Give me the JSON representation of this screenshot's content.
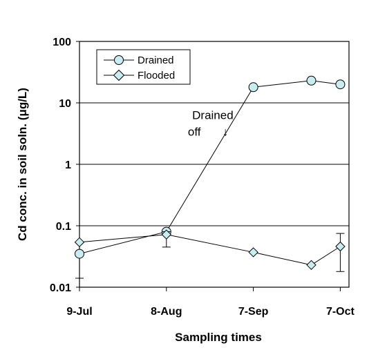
{
  "chart_data": {
    "type": "line",
    "xlabel": "Sampling times",
    "ylabel": "Cd conc. in soil soln. (μg/L)",
    "ylim": [
      0.01,
      100
    ],
    "yscale": "log",
    "grid": "horizontal major gridlines",
    "legend_position": "top-left",
    "x_ticks": [
      {
        "date": "2000-07-09",
        "label": "9-Jul"
      },
      {
        "date": "2000-08-08",
        "label": "8-Aug"
      },
      {
        "date": "2000-09-07",
        "label": "7-Sep"
      },
      {
        "date": "2000-10-07",
        "label": "7-Oct"
      }
    ],
    "xlim": [
      "2000-07-09",
      "2000-10-10"
    ],
    "y_ticks": [
      {
        "value": 0.01,
        "label": "0.01"
      },
      {
        "value": 0.1,
        "label": "0.1"
      },
      {
        "value": 1,
        "label": "1"
      },
      {
        "value": 10,
        "label": "10"
      },
      {
        "value": 100,
        "label": "100"
      }
    ],
    "series": [
      {
        "name": "Drained",
        "marker": "circle",
        "marker_color": "#c8ecef",
        "points": [
          {
            "x": "2000-07-09",
            "y": 0.035,
            "err_low": 0.014
          },
          {
            "x": "2000-08-08",
            "y": 0.08
          },
          {
            "x": "2000-09-07",
            "y": 18
          },
          {
            "x": "2000-09-27",
            "y": 23
          },
          {
            "x": "2000-10-07",
            "y": 20
          }
        ]
      },
      {
        "name": "Flooded",
        "marker": "diamond",
        "marker_color": "#c8ecef",
        "points": [
          {
            "x": "2000-07-09",
            "y": 0.054
          },
          {
            "x": "2000-08-08",
            "y": 0.072,
            "err_low": 0.045,
            "err_high": 0.08
          },
          {
            "x": "2000-09-07",
            "y": 0.037
          },
          {
            "x": "2000-09-27",
            "y": 0.023
          },
          {
            "x": "2000-10-07",
            "y": 0.046,
            "err_low": 0.018,
            "err_high": 0.075
          }
        ]
      }
    ],
    "annotation": {
      "line1": "Drained",
      "line2": "off",
      "arrow": "↓",
      "x": "2000-08-24",
      "y": 4
    }
  }
}
